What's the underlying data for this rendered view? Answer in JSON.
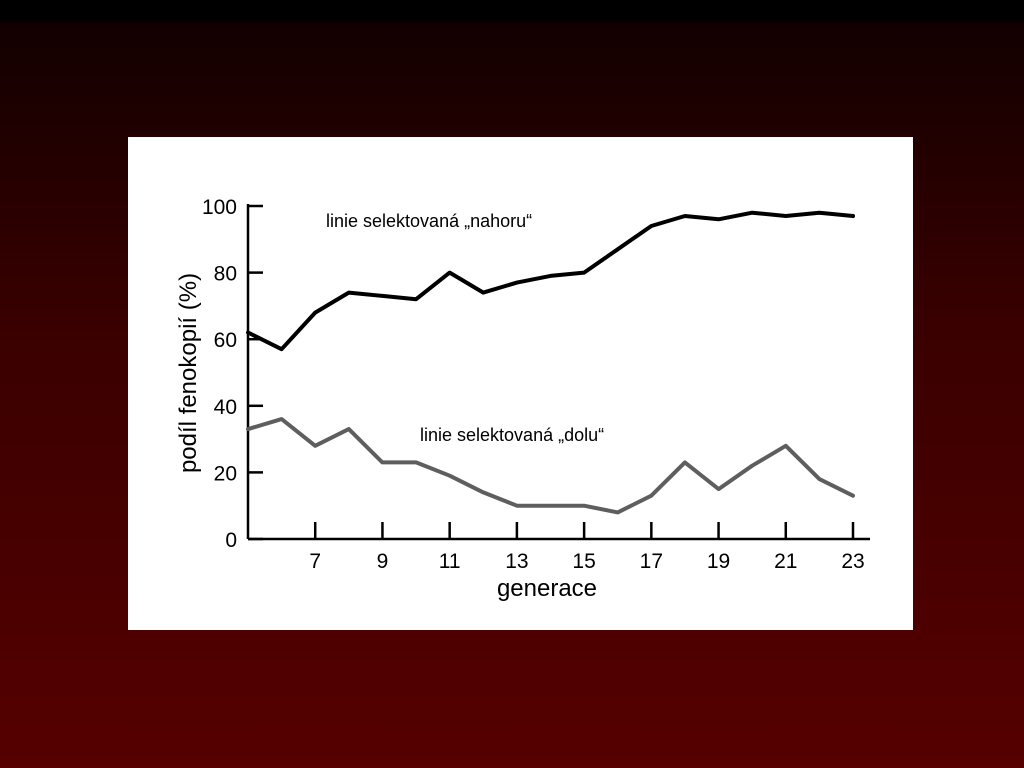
{
  "chart_data": {
    "type": "line",
    "xlabel": "generace",
    "ylabel": "podíl fenokopií (%)",
    "xlim": [
      5,
      23
    ],
    "ylim": [
      0,
      100
    ],
    "xticks": [
      7,
      9,
      11,
      13,
      15,
      17,
      19,
      21,
      23
    ],
    "yticks": [
      0,
      20,
      40,
      60,
      80,
      100
    ],
    "grid": false,
    "series": [
      {
        "name": "linie selektovaná „nahoru“",
        "color": "#000000",
        "x": [
          5,
          6,
          7,
          8,
          9,
          10,
          11,
          12,
          13,
          14,
          15,
          16,
          17,
          18,
          19,
          20,
          21,
          22,
          23
        ],
        "y": [
          62,
          57,
          68,
          74,
          73,
          72,
          80,
          74,
          77,
          79,
          80,
          87,
          94,
          97,
          96,
          98,
          97,
          98,
          97
        ]
      },
      {
        "name": "linie selektovaná „dolu“",
        "color": "#5e5e5e",
        "x": [
          5,
          6,
          7,
          8,
          9,
          10,
          11,
          12,
          13,
          14,
          15,
          16,
          17,
          18,
          19,
          20,
          21,
          22,
          23
        ],
        "y": [
          33,
          36,
          28,
          33,
          23,
          23,
          19,
          14,
          10,
          10,
          10,
          8,
          13,
          23,
          15,
          22,
          28,
          18,
          13
        ]
      }
    ]
  }
}
